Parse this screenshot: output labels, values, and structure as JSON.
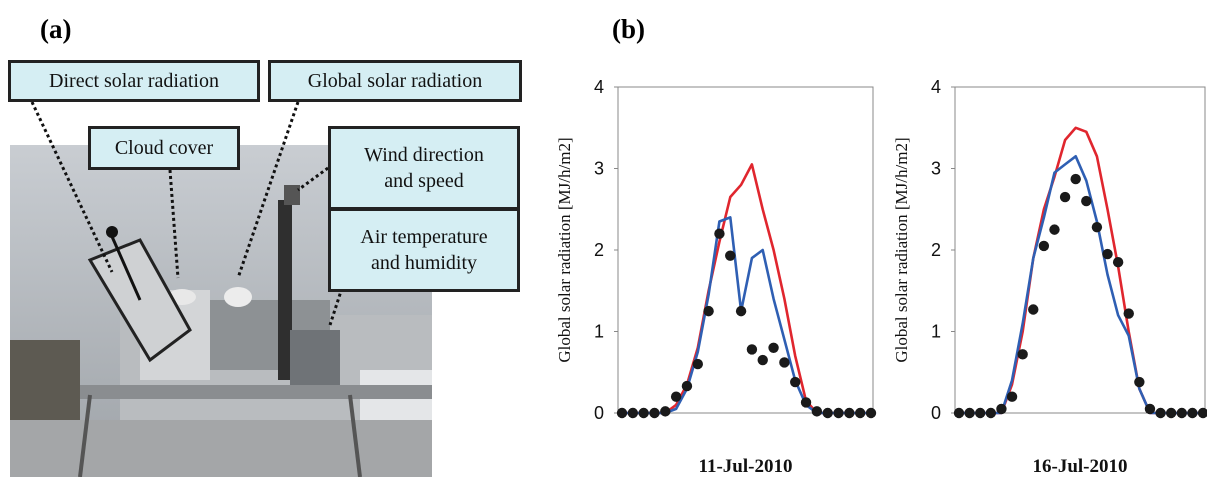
{
  "panel_a": {
    "label": "(a)",
    "callouts": [
      "Direct solar radiation",
      "Global solar radiation",
      "Cloud cover",
      "Wind direction\nand speed",
      "Air temperature\nand humidity"
    ]
  },
  "panel_b": {
    "label": "(b)"
  },
  "chart_data": [
    {
      "type": "line",
      "xlabel": "11-Jul-2010",
      "ylabel": "Global solar radiation [MJ/h/m2]",
      "ylim": [
        0,
        4
      ],
      "yticks": [
        0,
        1,
        2,
        3,
        4
      ],
      "series": [
        {
          "color": "#e0262e",
          "values": [
            0,
            0,
            0,
            0,
            0,
            0.1,
            0.35,
            0.8,
            1.5,
            2.1,
            2.65,
            2.8,
            3.05,
            2.5,
            2.0,
            1.4,
            0.7,
            0.15,
            0,
            0,
            0,
            0,
            0,
            0
          ]
        },
        {
          "color": "#2f5fb3",
          "values": [
            0,
            0,
            0,
            0,
            0,
            0.05,
            0.3,
            0.75,
            1.45,
            2.35,
            2.4,
            1.25,
            1.9,
            2.0,
            1.4,
            0.9,
            0.4,
            0.1,
            0,
            0,
            0,
            0,
            0,
            0
          ]
        },
        {
          "color": "#1a1a1a",
          "type": "scatter",
          "values": [
            0,
            0,
            0,
            0,
            0.02,
            0.2,
            0.33,
            0.6,
            1.25,
            2.2,
            1.93,
            1.25,
            0.78,
            0.65,
            0.8,
            0.62,
            0.38,
            0.13,
            0.02,
            0,
            0,
            0,
            0,
            0
          ]
        }
      ]
    },
    {
      "type": "line",
      "xlabel": "16-Jul-2010",
      "ylabel": "Global solar radiation [MJ/h/m2]",
      "ylim": [
        0,
        4
      ],
      "yticks": [
        0,
        1,
        2,
        3,
        4
      ],
      "series": [
        {
          "color": "#e0262e",
          "values": [
            0,
            0,
            0,
            0,
            0,
            0.35,
            1.0,
            1.9,
            2.5,
            2.9,
            3.35,
            3.5,
            3.45,
            3.15,
            2.5,
            1.8,
            1.0,
            0.3,
            0,
            0,
            0,
            0,
            0,
            0
          ]
        },
        {
          "color": "#2f5fb3",
          "values": [
            0,
            0,
            0,
            0,
            0,
            0.4,
            1.1,
            1.9,
            2.4,
            2.95,
            3.05,
            3.15,
            2.85,
            2.35,
            1.7,
            1.2,
            0.95,
            0.3,
            0,
            0,
            0,
            0,
            0,
            0
          ]
        },
        {
          "color": "#1a1a1a",
          "type": "scatter",
          "values": [
            0,
            0,
            0,
            0,
            0.05,
            0.2,
            0.72,
            1.27,
            2.05,
            2.25,
            2.65,
            2.87,
            2.6,
            2.28,
            1.95,
            1.85,
            1.22,
            0.38,
            0.05,
            0,
            0,
            0,
            0,
            0
          ]
        }
      ]
    }
  ]
}
